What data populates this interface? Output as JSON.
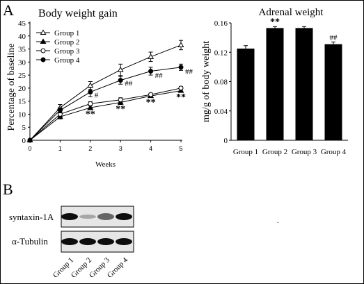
{
  "panel_labels": {
    "a": "A",
    "b": "B"
  },
  "chart_data": [
    {
      "type": "line",
      "title": "Body weight gain",
      "xlabel": "Weeks",
      "ylabel": "Percentage of baseline",
      "x": [
        0,
        1,
        2,
        3,
        4,
        5
      ],
      "xlim": [
        0,
        5
      ],
      "ylim": [
        0,
        45
      ],
      "xticks": [
        0,
        1,
        2,
        3,
        4,
        5
      ],
      "yticks": [
        0,
        5,
        10,
        15,
        20,
        25,
        30,
        35,
        40,
        45
      ],
      "legend_position": "top-left",
      "series": [
        {
          "name": "Group 1",
          "marker": "open-triangle",
          "values": [
            0,
            12.5,
            21,
            27,
            32,
            36.5
          ],
          "errors": [
            0,
            1.2,
            1.5,
            2.2,
            1.8,
            1.8
          ]
        },
        {
          "name": "Group 2",
          "marker": "filled-triangle",
          "values": [
            0,
            9,
            12.5,
            14.5,
            17,
            19
          ],
          "errors": [
            0,
            0.8,
            0.8,
            0.8,
            0.6,
            0.6
          ]
        },
        {
          "name": "Group 3",
          "marker": "open-circle",
          "values": [
            0,
            10,
            14,
            15.5,
            17.5,
            20
          ],
          "errors": [
            0,
            0.8,
            0.8,
            0.8,
            0.6,
            0.6
          ]
        },
        {
          "name": "Group 4",
          "marker": "filled-circle",
          "values": [
            0,
            11.5,
            18.5,
            23,
            26.5,
            28
          ],
          "errors": [
            0,
            1.0,
            1.8,
            1.5,
            1.5,
            1.2
          ]
        }
      ],
      "annotations": [
        {
          "text": "**",
          "x": 2,
          "y": 10.5
        },
        {
          "text": "**",
          "x": 3,
          "y": 12.5
        },
        {
          "text": "**",
          "x": 4,
          "y": 15
        },
        {
          "text": "**",
          "x": 5,
          "y": 17
        },
        {
          "text": "#",
          "x": 2,
          "y": 17.5
        },
        {
          "text": "##",
          "x": 3,
          "y": 22
        },
        {
          "text": "##",
          "x": 4,
          "y": 25
        },
        {
          "text": "##",
          "x": 5,
          "y": 26.5
        }
      ]
    },
    {
      "type": "bar",
      "title": "Adrenal weight",
      "xlabel": "",
      "ylabel": "mg/g of body weight",
      "categories": [
        "Group 1",
        "Group 2",
        "Group 3",
        "Group 4"
      ],
      "values": [
        0.125,
        0.153,
        0.153,
        0.131
      ],
      "errors": [
        0.004,
        0.002,
        0.002,
        0.003
      ],
      "ylim": [
        0,
        0.16
      ],
      "yticks": [
        "0",
        "0.04",
        "0.08",
        "0.12",
        "0.16"
      ],
      "bar_color": "#000000",
      "annotations": [
        {
          "text": "**",
          "category": "Group 2"
        },
        {
          "text": "##",
          "category": "Group 4"
        }
      ]
    }
  ],
  "western_blot": {
    "rows": [
      {
        "label": "syntaxin-1A",
        "intensities": [
          0.95,
          0.35,
          0.6,
          0.95
        ]
      },
      {
        "label": "α-Tubulin",
        "intensities": [
          0.95,
          0.95,
          0.95,
          0.95
        ]
      }
    ],
    "lanes": [
      "Group 1",
      "Group 2",
      "Group 3",
      "Group 4"
    ]
  },
  "stray_mark": "."
}
